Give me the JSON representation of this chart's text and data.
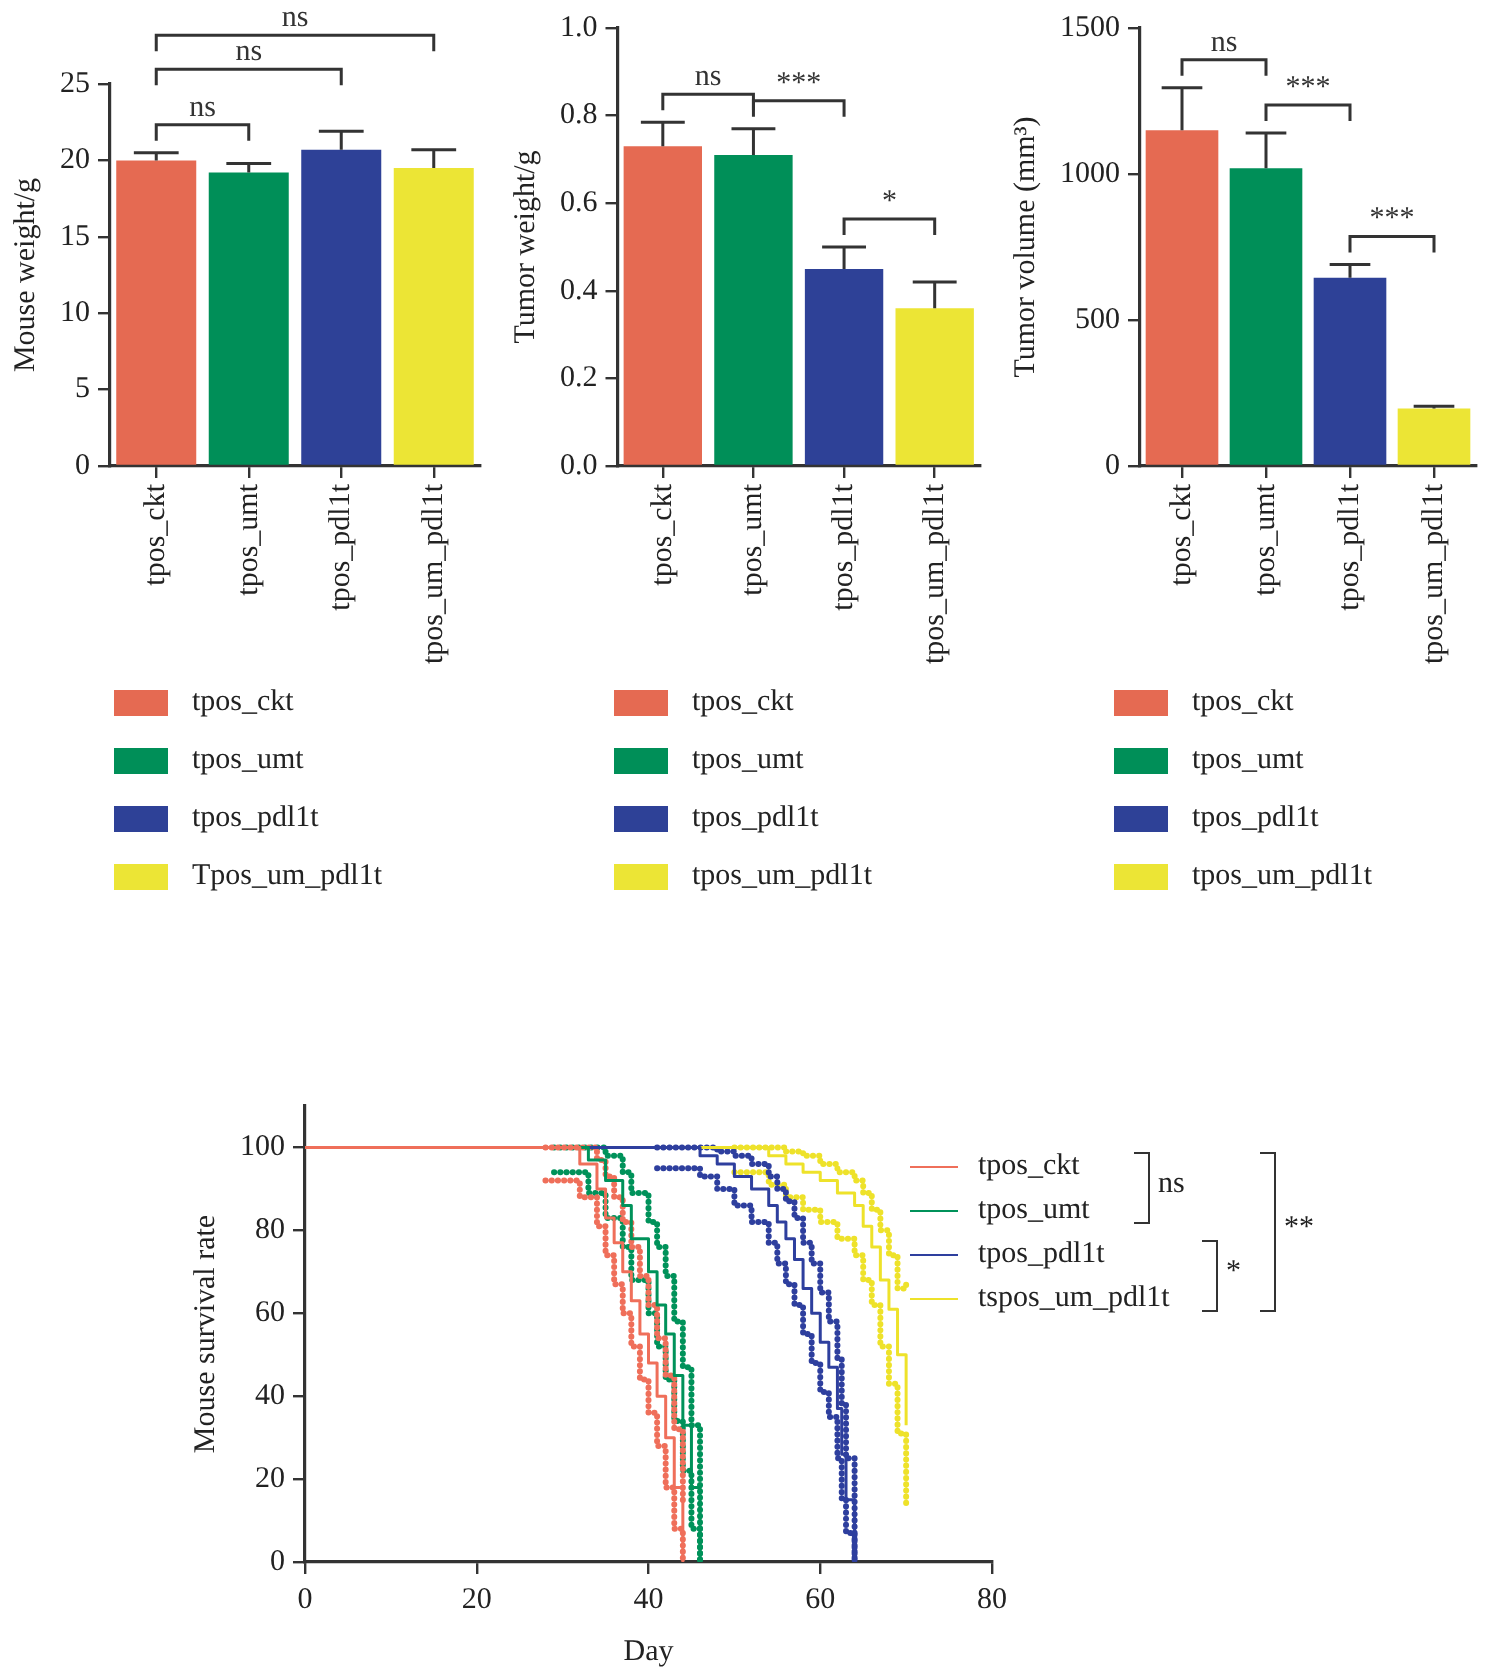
{
  "chart_data": [
    {
      "type": "bar",
      "ylabel": "Mouse weight/g",
      "categories": [
        "tpos_ckt",
        "tpos_umt",
        "tpos_pdl1t",
        "tpos_um_pdl1t"
      ],
      "ylim": [
        0,
        25
      ],
      "yticks": [
        0,
        5,
        10,
        15,
        20,
        25
      ],
      "legend": "bottom",
      "annotations": [
        "ns",
        "ns",
        "ns"
      ],
      "series": [
        {
          "name": "tpos_ckt",
          "color": "#e56a52",
          "values": [
            20.0,
            null,
            null,
            null
          ],
          "errors": [
            [
              20.0,
              20.5
            ],
            null,
            null,
            null
          ]
        },
        {
          "name": "tpos_umt",
          "color": "#008f58",
          "values": [
            null,
            19.2,
            null,
            null
          ],
          "errors": [
            null,
            [
              19.2,
              19.8
            ],
            null,
            null
          ]
        },
        {
          "name": "tpos_pdl1t",
          "color": "#2e4197",
          "values": [
            null,
            null,
            20.7,
            null
          ],
          "errors": [
            null,
            null,
            [
              20.7,
              21.9
            ],
            null
          ]
        },
        {
          "name": "Tpos_um_pdl1t",
          "color": "#ece535",
          "values": [
            null,
            null,
            null,
            19.5
          ],
          "errors": [
            null,
            null,
            null,
            [
              19.5,
              20.7
            ]
          ]
        }
      ]
    },
    {
      "type": "bar",
      "ylabel": "Tumor weight/g",
      "categories": [
        "tpos_ckt",
        "tpos_umt",
        "tpos_pdl1t",
        "tpos_um_pdl1t"
      ],
      "ylim": [
        0,
        1.0
      ],
      "yticks": [
        {
          "value": 0,
          "label": "0.0"
        },
        {
          "value": 0.2,
          "label": "0.2"
        },
        {
          "value": 0.4,
          "label": "0.4"
        },
        {
          "value": 0.6,
          "label": "0.6"
        },
        {
          "value": 0.8,
          "label": "0.8"
        },
        {
          "value": 1.0,
          "label": "1.0"
        }
      ],
      "legend": "bottom",
      "annotations": [
        "ns",
        "***",
        "*"
      ],
      "series": [
        {
          "name": "tpos_ckt",
          "color": "#e56a52",
          "values": [
            0.73,
            null,
            null,
            null
          ],
          "errors": [
            [
              0.73,
              0.785
            ],
            null,
            null,
            null
          ]
        },
        {
          "name": "tpos_umt",
          "color": "#008f58",
          "values": [
            null,
            0.71,
            null,
            null
          ],
          "errors": [
            null,
            [
              0.71,
              0.77
            ],
            null,
            null
          ]
        },
        {
          "name": "tpos_pdl1t",
          "color": "#2e4197",
          "values": [
            null,
            null,
            0.45,
            null
          ],
          "errors": [
            null,
            null,
            [
              0.45,
              0.5
            ],
            null
          ]
        },
        {
          "name": "tpos_um_pdl1t",
          "color": "#ece535",
          "values": [
            null,
            null,
            null,
            0.36
          ],
          "errors": [
            null,
            null,
            null,
            [
              0.36,
              0.42
            ]
          ]
        }
      ]
    },
    {
      "type": "bar",
      "ylabel": "Tumor volume (mm³)",
      "categories": [
        "tpos_ckt",
        "tpos_umt",
        "tpos_pdl1t",
        "tpos_um_pdl1t"
      ],
      "ylim": [
        0,
        1500
      ],
      "yticks": [
        0,
        500,
        1000,
        1500
      ],
      "legend": "bottom",
      "annotations": [
        "ns",
        "***",
        "***"
      ],
      "series": [
        {
          "name": "tpos_ckt",
          "color": "#e56a52",
          "values": [
            1150,
            null,
            null,
            null
          ],
          "errors": [
            [
              1150,
              1295
            ],
            null,
            null,
            null
          ]
        },
        {
          "name": "tpos_umt",
          "color": "#008f58",
          "values": [
            null,
            1020,
            null,
            null
          ],
          "errors": [
            null,
            [
              1020,
              1140
            ],
            null,
            null
          ]
        },
        {
          "name": "tpos_pdl1t",
          "color": "#2e4197",
          "values": [
            null,
            null,
            645,
            null
          ],
          "errors": [
            null,
            null,
            [
              645,
              690
            ],
            null
          ]
        },
        {
          "name": "tpos_um_pdl1t",
          "color": "#ece535",
          "values": [
            null,
            null,
            null,
            197
          ],
          "errors": [
            null,
            null,
            null,
            [
              197,
              205
            ]
          ]
        }
      ]
    },
    {
      "type": "step",
      "xlabel": "Day",
      "ylabel": "Mouse survival rate",
      "xlim": [
        0,
        80
      ],
      "xticks": [
        0,
        20,
        40,
        60,
        80
      ],
      "ylim": [
        0,
        110
      ],
      "yticks": [
        0,
        20,
        40,
        60,
        80,
        100
      ],
      "legend": "top right",
      "annotations": [
        "ns",
        "*",
        "**"
      ],
      "series": [
        {
          "name": "tpos_ckt",
          "color": "#ef6f5a",
          "x": [
            0,
            30,
            32,
            34,
            35,
            36,
            37,
            38,
            39,
            40,
            41,
            42,
            43,
            44
          ],
          "values": [
            100,
            100,
            96,
            90,
            83,
            77,
            70,
            63,
            55,
            48,
            40,
            30,
            18,
            0
          ]
        },
        {
          "name": "tpos_umt",
          "color": "#00925a",
          "x": [
            0,
            31,
            33,
            35,
            37,
            38,
            40,
            41,
            42,
            43,
            44,
            45,
            46
          ],
          "values": [
            100,
            100,
            97,
            92,
            86,
            78,
            70,
            62,
            55,
            45,
            33,
            18,
            0
          ]
        },
        {
          "name": "tpos_pdl1t",
          "color": "#2e3f9e",
          "x": [
            0,
            44,
            46,
            48,
            50,
            52,
            54,
            55,
            56,
            57,
            58,
            59,
            60,
            61,
            62,
            62.5,
            63,
            64
          ],
          "values": [
            100,
            100,
            98,
            96,
            93,
            90,
            86,
            82,
            78,
            73,
            66,
            60,
            53,
            47,
            37,
            26,
            15,
            0
          ]
        },
        {
          "name": "tspos_um_pdl1t",
          "color": "#eee22a",
          "x": [
            0,
            52,
            54,
            56,
            58,
            60,
            62,
            64,
            65,
            66,
            67,
            68,
            69,
            70
          ],
          "values": [
            100,
            100,
            98,
            96,
            94,
            92,
            89,
            86,
            81,
            76,
            68,
            61,
            50,
            33
          ]
        },
        {
          "color": "#ef6f5a",
          "line_style": "dotted",
          "x": [
            28,
            32,
            34,
            35,
            36,
            37,
            38,
            39,
            40,
            41,
            42,
            43,
            44
          ],
          "values": [
            92,
            88,
            81,
            74,
            67,
            60,
            52,
            44,
            36,
            28,
            18,
            8,
            0
          ]
        },
        {
          "color": "#ef6f5a",
          "line_style": "dotted",
          "x": [
            28,
            32,
            34,
            35,
            36,
            37,
            38,
            39,
            40,
            41,
            42,
            43,
            44
          ],
          "values": [
            100,
            100,
            97,
            93,
            88,
            82,
            76,
            69,
            62,
            54,
            45,
            32,
            14
          ]
        },
        {
          "color": "#00925a",
          "line_style": "dotted",
          "x": [
            29,
            33,
            35,
            37,
            38,
            40,
            41,
            42,
            43,
            44,
            45,
            46
          ],
          "values": [
            94,
            89,
            83,
            76,
            68,
            60,
            52,
            44,
            34,
            22,
            8,
            0
          ]
        },
        {
          "color": "#00925a",
          "line_style": "dotted",
          "x": [
            29,
            33,
            35,
            37,
            38,
            40,
            41,
            42,
            43,
            44,
            45,
            46
          ],
          "values": [
            100,
            100,
            98,
            94,
            89,
            82,
            76,
            69,
            58,
            47,
            33,
            0
          ]
        },
        {
          "color": "#2e3f9e",
          "line_style": "dotted",
          "x": [
            41,
            46,
            48,
            50,
            52,
            54,
            55,
            56,
            57,
            58,
            59,
            60,
            61,
            62,
            62.5,
            63,
            64
          ],
          "values": [
            95,
            93,
            90,
            86,
            82,
            77,
            72,
            67,
            62,
            55,
            48,
            41,
            35,
            25,
            15,
            7,
            0
          ]
        },
        {
          "color": "#2e3f9e",
          "line_style": "dotted",
          "x": [
            41,
            46,
            48,
            50,
            52,
            54,
            55,
            56,
            57,
            58,
            59,
            60,
            61,
            62,
            62.5,
            63,
            64
          ],
          "values": [
            100,
            100,
            99,
            98,
            96,
            93,
            90,
            87,
            83,
            77,
            72,
            65,
            58,
            49,
            38,
            25,
            0
          ]
        },
        {
          "color": "#eee22a",
          "line_style": "dotted",
          "x": [
            50,
            54,
            56,
            58,
            60,
            62,
            64,
            65,
            66,
            67,
            68,
            69,
            70
          ],
          "values": [
            94,
            91,
            88,
            85,
            82,
            78,
            74,
            68,
            62,
            52,
            43,
            31,
            14
          ]
        },
        {
          "color": "#eee22a",
          "line_style": "dotted",
          "x": [
            50,
            54,
            56,
            58,
            60,
            62,
            64,
            65,
            66,
            67,
            68,
            69,
            70
          ],
          "values": [
            100,
            100,
            99,
            98,
            96,
            94,
            92,
            89,
            85,
            80,
            74,
            66,
            67
          ]
        }
      ]
    }
  ]
}
